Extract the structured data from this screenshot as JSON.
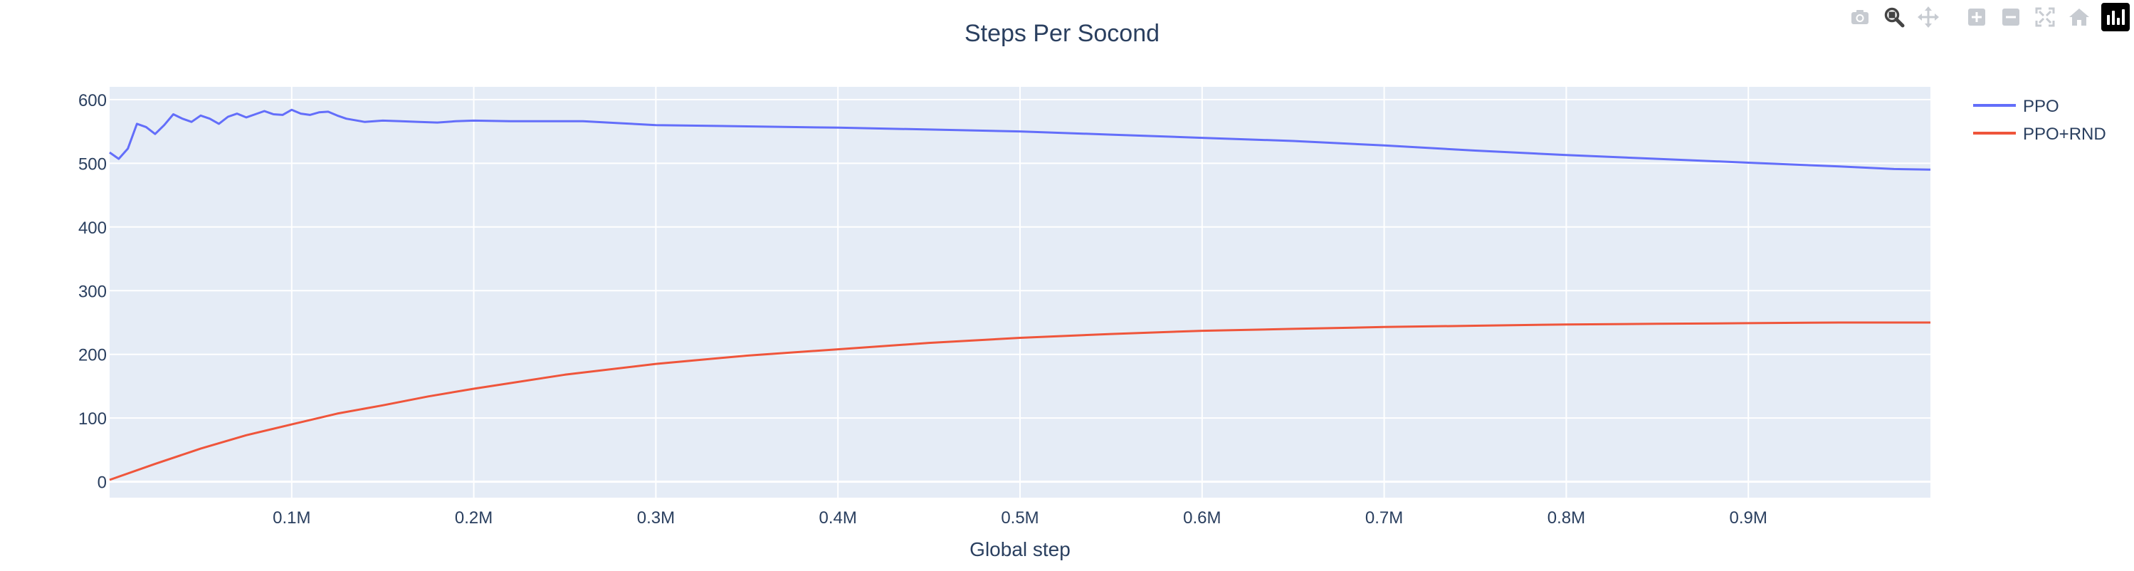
{
  "toolbar": {
    "buttons": [
      {
        "icon": "camera-icon",
        "label": "Download plot as a png"
      },
      {
        "icon": "zoom-icon",
        "label": "Zoom"
      },
      {
        "icon": "pan-icon",
        "label": "Pan"
      },
      {
        "icon": "zoom-in-icon",
        "label": "Zoom in"
      },
      {
        "icon": "zoom-out-icon",
        "label": "Zoom out"
      },
      {
        "icon": "autoscale-icon",
        "label": "Autoscale"
      },
      {
        "icon": "home-icon",
        "label": "Reset axes"
      },
      {
        "icon": "plotly-logo-icon",
        "label": "Produced with Plotly"
      }
    ],
    "active": "zoom-icon"
  },
  "chart_data": {
    "type": "line",
    "title": "Steps Per Socond",
    "xlabel": "Global step",
    "ylabel": "",
    "xlim": [
      0,
      1000000
    ],
    "ylim": [
      -25,
      620
    ],
    "x_ticks": [
      100000,
      200000,
      300000,
      400000,
      500000,
      600000,
      700000,
      800000,
      900000
    ],
    "x_tick_labels": [
      "0.1M",
      "0.2M",
      "0.3M",
      "0.4M",
      "0.5M",
      "0.6M",
      "0.7M",
      "0.8M",
      "0.9M"
    ],
    "y_ticks": [
      0,
      100,
      200,
      300,
      400,
      500,
      600
    ],
    "y_tick_labels": [
      "0",
      "100",
      "200",
      "300",
      "400",
      "500",
      "600"
    ],
    "grid": true,
    "legend_position": "top-right",
    "colors": {
      "plot_bg": "#e5ecf6",
      "grid": "#ffffff",
      "text": "#2a3f5f"
    },
    "series": [
      {
        "name": "PPO",
        "color": "#636efa",
        "x": [
          0,
          5000,
          10000,
          15000,
          20000,
          25000,
          30000,
          35000,
          40000,
          45000,
          50000,
          55000,
          60000,
          65000,
          70000,
          75000,
          80000,
          85000,
          90000,
          95000,
          100000,
          105000,
          110000,
          115000,
          120000,
          125000,
          130000,
          140000,
          150000,
          160000,
          170000,
          180000,
          190000,
          200000,
          220000,
          240000,
          260000,
          280000,
          300000,
          350000,
          400000,
          450000,
          500000,
          550000,
          600000,
          650000,
          700000,
          750000,
          800000,
          850000,
          900000,
          950000,
          980000,
          1000000
        ],
        "y": [
          517,
          507,
          523,
          562,
          557,
          546,
          560,
          577,
          570,
          565,
          575,
          570,
          562,
          573,
          578,
          572,
          577,
          582,
          577,
          576,
          584,
          578,
          576,
          580,
          581,
          575,
          570,
          565,
          567,
          566,
          565,
          564,
          566,
          567,
          566,
          566,
          566,
          563,
          560,
          558,
          556,
          553,
          550,
          545,
          540,
          535,
          528,
          520,
          513,
          507,
          501,
          495,
          491,
          490
        ]
      },
      {
        "name": "PPO+RND",
        "color": "#ef553b",
        "x": [
          0,
          25000,
          50000,
          75000,
          100000,
          125000,
          150000,
          175000,
          200000,
          250000,
          300000,
          350000,
          400000,
          450000,
          500000,
          550000,
          600000,
          650000,
          700000,
          750000,
          800000,
          850000,
          900000,
          950000,
          1000000
        ],
        "y": [
          3,
          28,
          52,
          73,
          90,
          107,
          120,
          134,
          146,
          168,
          185,
          198,
          208,
          218,
          226,
          232,
          237,
          240,
          243,
          245,
          247,
          248,
          249,
          250,
          250
        ]
      }
    ]
  }
}
